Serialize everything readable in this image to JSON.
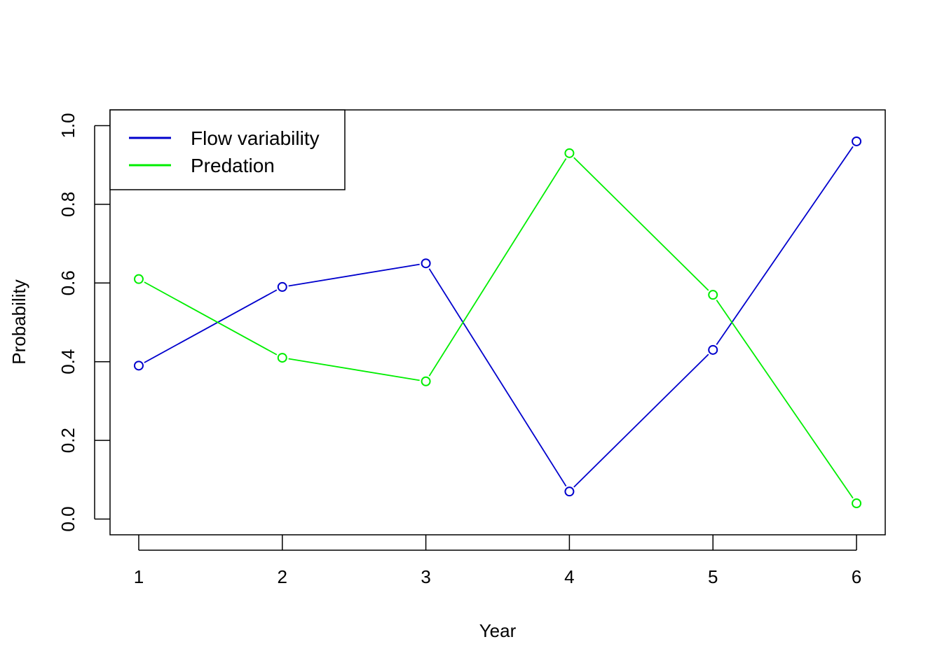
{
  "chart_data": {
    "type": "line",
    "title": "",
    "xlabel": "Year",
    "ylabel": "Probability",
    "x": [
      1,
      2,
      3,
      4,
      5,
      6
    ],
    "x_ticks": [
      "1",
      "2",
      "3",
      "4",
      "5",
      "6"
    ],
    "y_ticks": [
      "0.0",
      "0.2",
      "0.4",
      "0.6",
      "0.8",
      "1.0"
    ],
    "xlim": [
      0.8,
      6.2
    ],
    "ylim": [
      -0.04,
      1.04
    ],
    "grid": false,
    "legend_position": "top-left",
    "series": [
      {
        "name": "Flow variability",
        "color": "#0000CD",
        "values": [
          0.39,
          0.59,
          0.65,
          0.07,
          0.43,
          0.96
        ]
      },
      {
        "name": "Predation",
        "color": "#00EE00",
        "values": [
          0.61,
          0.41,
          0.35,
          0.93,
          0.57,
          0.04
        ]
      }
    ]
  }
}
